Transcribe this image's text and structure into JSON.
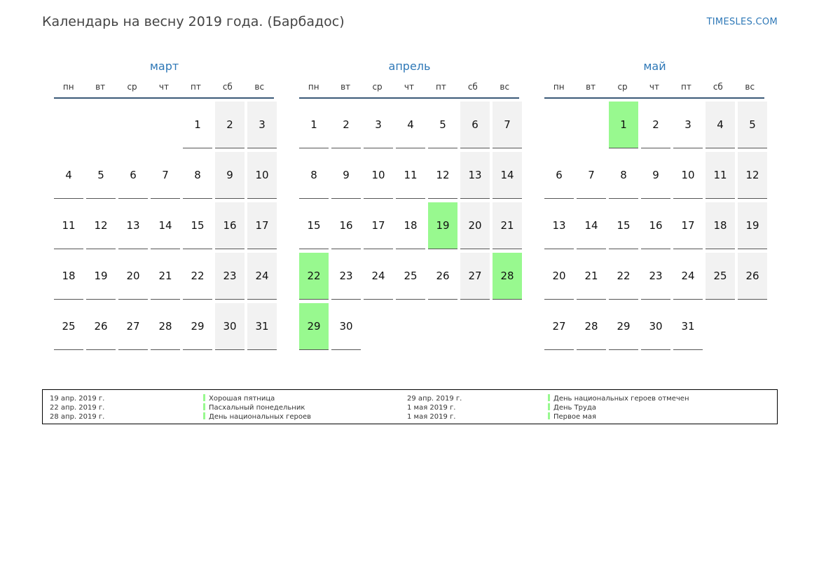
{
  "header": {
    "title": "Календарь на весну 2019 года. (Барбадос)",
    "site": "TIMESLES.COM"
  },
  "colors": {
    "accent": "#2e78b7",
    "holiday": "#98f98f",
    "weekend": "#f2f2f2"
  },
  "weekdays": [
    "пн",
    "вт",
    "ср",
    "чт",
    "пт",
    "сб",
    "вс"
  ],
  "months": [
    {
      "name": "март",
      "offset": 4,
      "days": 31,
      "holidays": []
    },
    {
      "name": "апрель",
      "offset": 0,
      "days": 30,
      "holidays": [
        19,
        22,
        28,
        29
      ]
    },
    {
      "name": "май",
      "offset": 2,
      "days": 31,
      "holidays": [
        1
      ]
    }
  ],
  "legend": {
    "left": [
      {
        "date": "19 апр. 2019 г.",
        "name": "Хорошая пятница"
      },
      {
        "date": "22 апр. 2019 г.",
        "name": "Пасхальный понедельник"
      },
      {
        "date": "28 апр. 2019 г.",
        "name": "День национальных героев"
      }
    ],
    "right": [
      {
        "date": "29 апр. 2019 г.",
        "name": "День национальных героев отмечен"
      },
      {
        "date": "1 мая 2019 г.",
        "name": "День Труда"
      },
      {
        "date": "1 мая 2019 г.",
        "name": "Первое мая"
      }
    ]
  }
}
